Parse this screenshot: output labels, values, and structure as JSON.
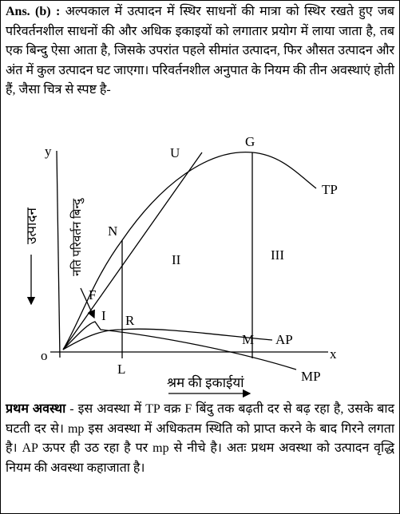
{
  "answer": {
    "label": "Ans. (b) :",
    "text": "अल्पकाल में उत्पादन में स्थिर साधनों की मात्रा को स्थिर रखते हुए जब परिवर्तनशील साधनों की और अधिक इकाइयों को लगातार प्रयोग में लाया जाता है, तब एक बिन्दु ऐसा आता है, जिसके उपरांत पहले सीमांत उत्पादन, फिर औसत उत्पादन और अंत में कुल उत्पादन घट जाएगा। परिवर्तनशील अनुपात के नियम की तीन अवस्थाएं होती हैं, जैसा चित्र से स्पष्ट है-"
  },
  "diagram": {
    "y_axis": "y",
    "x_axis": "x",
    "origin": "o",
    "y_label": "उत्पादन",
    "x_label": "श्रम की इकाईयां",
    "inflection_label": "नति परिवर्तन बिन्दु",
    "points": {
      "U": "U",
      "G": "G",
      "TP": "TP",
      "N": "N",
      "F": "F",
      "I": "I",
      "R": "R",
      "M": "M",
      "AP": "AP",
      "L": "L",
      "MP": "MP"
    },
    "stages": {
      "II": "II",
      "III": "III"
    }
  },
  "stage": {
    "title": "प्रथम अवस्था",
    "text": "- इस अवस्था में TP वक्र F बिंदु तक बढ़ती दर से बढ़ रहा है, उसके बाद घटती दर से। mp इस अवस्था में अधिकतम स्थिति को प्राप्त करने के बाद गिरने लगता है। AP ऊपर ही उठ रहा है पर mp से नीचे है। अतः प्रथम अवस्था को उत्पादन वृद्धि नियम की अवस्था कहाजाता है।"
  }
}
